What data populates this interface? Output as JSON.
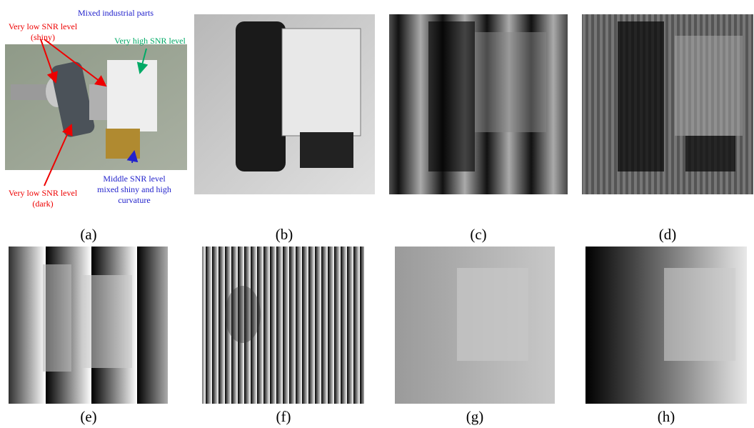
{
  "panels": [
    {
      "label": "(a)",
      "annotations": [
        {
          "lines": [
            "Mixed industrial parts"
          ]
        },
        {
          "lines": [
            "Very low SNR level",
            "(shiny)"
          ]
        },
        {
          "lines": [
            "Very high SNR level"
          ]
        },
        {
          "lines": [
            "Middle SNR level",
            "mixed shiny and high",
            "curvature"
          ]
        },
        {
          "lines": [
            "Very low SNR level",
            "(dark)"
          ]
        }
      ]
    },
    {
      "label": "(b)"
    },
    {
      "label": "(c)"
    },
    {
      "label": "(d)"
    },
    {
      "label": "(e)"
    },
    {
      "label": "(f)"
    },
    {
      "label": "(g)"
    },
    {
      "label": "(h)"
    }
  ]
}
